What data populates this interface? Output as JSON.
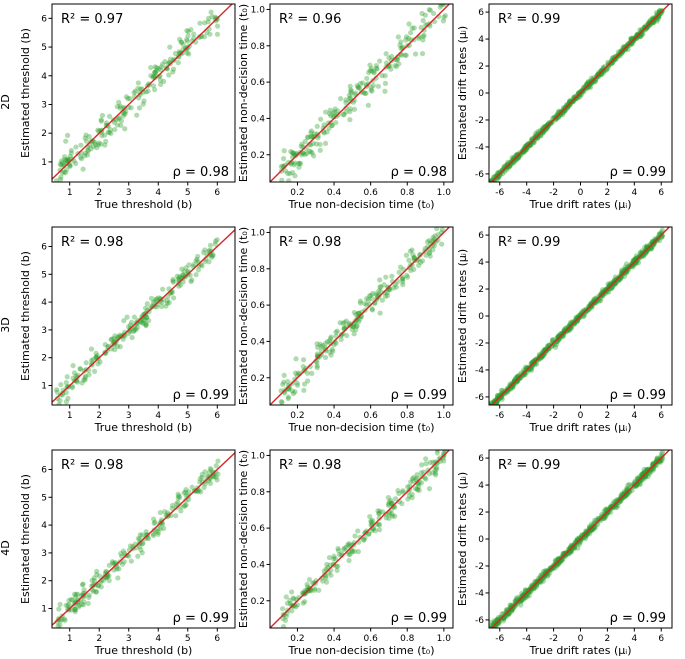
{
  "figure": {
    "row_labels": [
      "2D",
      "3D",
      "4D"
    ],
    "columns": [
      {
        "xlabel": "True threshold",
        "xlabel_symbol": "(b)",
        "ylabel": "Estimated threshold",
        "ylabel_symbol": "(b)"
      },
      {
        "xlabel": "True non-decision time",
        "xlabel_symbol": "(t₀)",
        "ylabel": "Estimated non-decision time",
        "ylabel_symbol": "(t₀)"
      },
      {
        "xlabel": "True drift rates",
        "xlabel_symbol": "(μᵢ)",
        "ylabel": "Estimated drift rates",
        "ylabel_symbol": "(μᵢ)"
      }
    ],
    "r2_prefix": "R² = ",
    "rho_prefix": "ρ = "
  },
  "chart_data": [
    {
      "type": "scatter",
      "row": "2D",
      "col": 0,
      "xlim": [
        0.4,
        6.6
      ],
      "ylim": [
        0.3,
        6.5
      ],
      "xticks": [
        1,
        2,
        3,
        4,
        5,
        6
      ],
      "yticks": [
        1,
        2,
        3,
        4,
        5,
        6
      ],
      "r2": "0.97",
      "rho": "0.98",
      "noise": 0.28,
      "n": 220,
      "seed": 11,
      "identity_line": true,
      "point_color": "#2ca02c",
      "line_color": "#d62728"
    },
    {
      "type": "scatter",
      "row": "2D",
      "col": 1,
      "xlim": [
        0.05,
        1.05
      ],
      "ylim": [
        0.05,
        1.03
      ],
      "xticks": [
        0.2,
        0.4,
        0.6,
        0.8,
        1.0
      ],
      "yticks": [
        0.2,
        0.4,
        0.6,
        0.8,
        1.0
      ],
      "tick_decimals": 1,
      "r2": "0.96",
      "rho": "0.98",
      "noise": 0.05,
      "n": 220,
      "seed": 12,
      "identity_line": true,
      "point_color": "#2ca02c",
      "line_color": "#d62728"
    },
    {
      "type": "scatter",
      "row": "2D",
      "col": 2,
      "xlim": [
        -6.8,
        6.8
      ],
      "ylim": [
        -6.6,
        6.6
      ],
      "xticks": [
        -6,
        -4,
        -2,
        0,
        2,
        4,
        6
      ],
      "yticks": [
        -6,
        -4,
        -2,
        0,
        2,
        4,
        6
      ],
      "r2": "0.99",
      "rho": "0.99",
      "noise": 0.12,
      "n": 600,
      "seed": 13,
      "identity_line": true,
      "point_color": "#2ca02c",
      "line_color": "#d62728"
    },
    {
      "type": "scatter",
      "row": "3D",
      "col": 0,
      "xlim": [
        0.4,
        6.6
      ],
      "ylim": [
        0.3,
        6.7
      ],
      "xticks": [
        1,
        2,
        3,
        4,
        5,
        6
      ],
      "yticks": [
        1,
        2,
        3,
        4,
        5,
        6
      ],
      "r2": "0.98",
      "rho": "0.99",
      "noise": 0.2,
      "n": 220,
      "seed": 21,
      "identity_line": true,
      "point_color": "#2ca02c",
      "line_color": "#d62728"
    },
    {
      "type": "scatter",
      "row": "3D",
      "col": 1,
      "xlim": [
        0.05,
        1.05
      ],
      "ylim": [
        0.05,
        1.03
      ],
      "xticks": [
        0.2,
        0.4,
        0.6,
        0.8,
        1.0
      ],
      "yticks": [
        0.2,
        0.4,
        0.6,
        0.8,
        1.0
      ],
      "tick_decimals": 1,
      "r2": "0.98",
      "rho": "0.99",
      "noise": 0.035,
      "n": 220,
      "seed": 22,
      "identity_line": true,
      "point_color": "#2ca02c",
      "line_color": "#d62728"
    },
    {
      "type": "scatter",
      "row": "3D",
      "col": 2,
      "xlim": [
        -6.8,
        6.8
      ],
      "ylim": [
        -6.6,
        6.6
      ],
      "xticks": [
        -6,
        -4,
        -2,
        0,
        2,
        4,
        6
      ],
      "yticks": [
        -6,
        -4,
        -2,
        0,
        2,
        4,
        6
      ],
      "r2": "0.99",
      "rho": "0.99",
      "noise": 0.13,
      "n": 650,
      "seed": 23,
      "identity_line": true,
      "point_color": "#2ca02c",
      "line_color": "#d62728"
    },
    {
      "type": "scatter",
      "row": "4D",
      "col": 0,
      "xlim": [
        0.4,
        6.6
      ],
      "ylim": [
        0.3,
        6.7
      ],
      "xticks": [
        1,
        2,
        3,
        4,
        5,
        6
      ],
      "yticks": [
        1,
        2,
        3,
        4,
        5,
        6
      ],
      "r2": "0.98",
      "rho": "0.99",
      "noise": 0.2,
      "n": 220,
      "seed": 31,
      "identity_line": true,
      "point_color": "#2ca02c",
      "line_color": "#d62728"
    },
    {
      "type": "scatter",
      "row": "4D",
      "col": 1,
      "xlim": [
        0.05,
        1.05
      ],
      "ylim": [
        0.05,
        1.03
      ],
      "xticks": [
        0.2,
        0.4,
        0.6,
        0.8,
        1.0
      ],
      "yticks": [
        0.2,
        0.4,
        0.6,
        0.8,
        1.0
      ],
      "tick_decimals": 1,
      "r2": "0.98",
      "rho": "0.99",
      "noise": 0.035,
      "n": 220,
      "seed": 32,
      "identity_line": true,
      "point_color": "#2ca02c",
      "line_color": "#d62728"
    },
    {
      "type": "scatter",
      "row": "4D",
      "col": 2,
      "xlim": [
        -6.8,
        6.8
      ],
      "ylim": [
        -6.6,
        6.6
      ],
      "xticks": [
        -6,
        -4,
        -2,
        0,
        2,
        4,
        6
      ],
      "yticks": [
        -6,
        -4,
        -2,
        0,
        2,
        4,
        6
      ],
      "r2": "0.99",
      "rho": "0.99",
      "noise": 0.15,
      "n": 700,
      "seed": 33,
      "identity_line": true,
      "point_color": "#2ca02c",
      "line_color": "#d62728"
    }
  ]
}
